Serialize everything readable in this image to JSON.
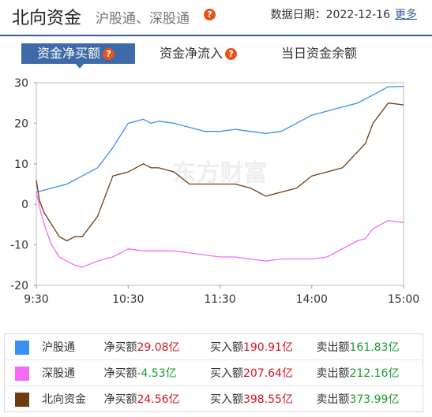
{
  "header": {
    "title": "北向资金",
    "subtitle": "沪股通、深股通",
    "help": "?",
    "date_label": "数据日期：2022-12-16",
    "more": "更多"
  },
  "tabs": [
    {
      "label": "资金净买额",
      "active": true,
      "help": "?"
    },
    {
      "label": "资金净流入",
      "active": false,
      "help": "?"
    },
    {
      "label": "当日资金余额",
      "active": false
    }
  ],
  "watermark": "东方财富",
  "colors": {
    "hgt": "#3b8ff1",
    "sgt": "#f36bf3",
    "north": "#6f3c12"
  },
  "chart_data": {
    "type": "line",
    "x_ticks": [
      "9:30",
      "10:30",
      "11:30",
      "14:00",
      "15:00"
    ],
    "y_ticks": [
      "30",
      "20",
      "10",
      "0",
      "-10",
      "-20"
    ],
    "ylim": [
      -20,
      30
    ],
    "x_unit": "minutes of trading session (0 = 9:30, 240 = 15:00)",
    "series": [
      {
        "name": "沪股通",
        "color": "#3b8ff1",
        "x": [
          0,
          5,
          10,
          20,
          30,
          40,
          50,
          60,
          70,
          75,
          80,
          90,
          100,
          110,
          120,
          130,
          140,
          150,
          160,
          170,
          180,
          190,
          200,
          210,
          215,
          220,
          230,
          240
        ],
        "y": [
          3,
          3.5,
          4,
          5,
          7,
          9,
          14,
          20,
          21,
          20,
          20.5,
          20,
          19,
          18,
          18,
          18.5,
          18,
          17.5,
          18,
          20,
          22,
          23,
          24,
          25,
          26,
          27,
          29,
          29.1
        ]
      },
      {
        "name": "深股通",
        "color": "#f36bf3",
        "x": [
          0,
          3,
          6,
          10,
          15,
          20,
          25,
          30,
          40,
          50,
          60,
          70,
          80,
          90,
          100,
          110,
          120,
          130,
          140,
          150,
          160,
          170,
          180,
          190,
          200,
          210,
          215,
          220,
          230,
          240
        ],
        "y": [
          3,
          -2,
          -6,
          -10,
          -13,
          -14,
          -15,
          -15.5,
          -14,
          -13,
          -11,
          -11.5,
          -11.5,
          -11.5,
          -12,
          -12.5,
          -13,
          -13,
          -13.5,
          -14,
          -13.5,
          -13.5,
          -13.5,
          -13,
          -11,
          -9,
          -8.5,
          -6,
          -4,
          -4.5
        ]
      },
      {
        "name": "北向资金",
        "color": "#6f3c12",
        "x": [
          0,
          2,
          5,
          10,
          15,
          20,
          25,
          30,
          40,
          50,
          60,
          70,
          75,
          80,
          90,
          100,
          110,
          120,
          130,
          140,
          150,
          160,
          170,
          180,
          190,
          200,
          210,
          215,
          220,
          230,
          240
        ],
        "y": [
          6,
          1,
          -2,
          -5,
          -8,
          -9,
          -8,
          -8,
          -3,
          7,
          8,
          10,
          9,
          9,
          8,
          5,
          5,
          5,
          5,
          4,
          2,
          3,
          4,
          7,
          8,
          9,
          13,
          15,
          20,
          25,
          24.56
        ]
      }
    ]
  },
  "legend": [
    {
      "name": "沪股通",
      "color": "#3b8ff1",
      "net_label": "净买额",
      "net": "29.08亿",
      "net_color": "red",
      "buy_label": "买入额",
      "buy": "190.91亿",
      "sell_label": "卖出额",
      "sell": "161.83亿"
    },
    {
      "name": "深股通",
      "color": "#f36bf3",
      "net_label": "净买额",
      "net": "-4.53亿",
      "net_color": "green",
      "buy_label": "买入额",
      "buy": "207.64亿",
      "sell_label": "卖出额",
      "sell": "212.16亿"
    },
    {
      "name": "北向资金",
      "color": "#6f3c12",
      "net_label": "净买额",
      "net": "24.56亿",
      "net_color": "red",
      "buy_label": "买入额",
      "buy": "398.55亿",
      "sell_label": "卖出额",
      "sell": "373.99亿"
    }
  ]
}
